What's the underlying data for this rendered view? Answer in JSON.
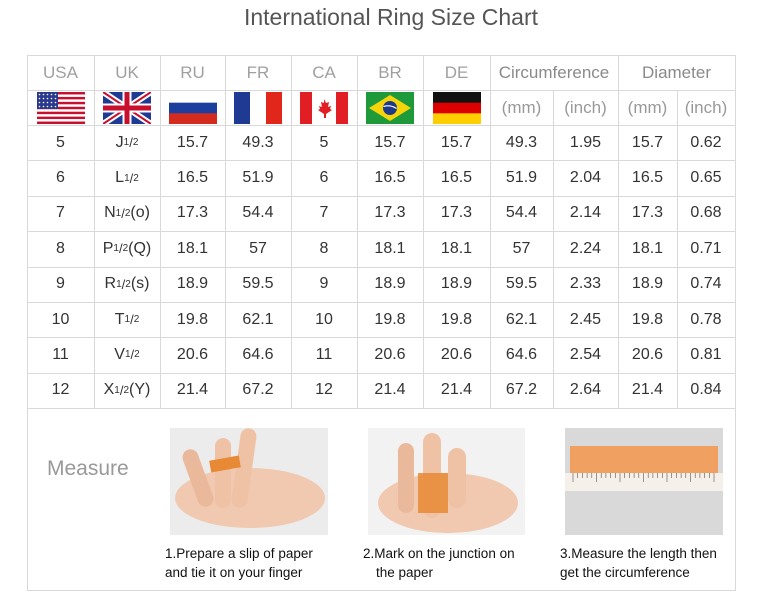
{
  "title": "International Ring Size Chart",
  "table": {
    "header": [
      "USA",
      "UK",
      "RU",
      "FR",
      "CA",
      "BR",
      "DE",
      "Circumference",
      "Diameter"
    ],
    "units": [
      "(mm)",
      "(inch)",
      "(mm)",
      "(inch)"
    ],
    "uk_fraction": {
      "numerator": "1",
      "separator": "/",
      "denominator": "2"
    },
    "rows": [
      [
        5,
        {
          "letter": "J"
        },
        15.7,
        49.3,
        5,
        15.7,
        15.7,
        49.3,
        1.95,
        15.7,
        0.62
      ],
      [
        6,
        {
          "letter": "L"
        },
        16.5,
        51.9,
        6,
        16.5,
        16.5,
        51.9,
        2.04,
        16.5,
        0.65
      ],
      [
        7,
        {
          "letter": "N",
          "suffix": "(o)"
        },
        17.3,
        54.4,
        7,
        17.3,
        17.3,
        54.4,
        2.14,
        17.3,
        0.68
      ],
      [
        8,
        {
          "letter": "P",
          "suffix": "(Q)"
        },
        18.1,
        57,
        8,
        18.1,
        18.1,
        57,
        2.24,
        18.1,
        0.71
      ],
      [
        9,
        {
          "letter": "R",
          "suffix": "(s)"
        },
        18.9,
        59.5,
        9,
        18.9,
        18.9,
        59.5,
        2.33,
        18.9,
        0.74
      ],
      [
        10,
        {
          "letter": "T"
        },
        19.8,
        62.1,
        10,
        19.8,
        19.8,
        62.1,
        2.45,
        19.8,
        0.78
      ],
      [
        11,
        {
          "letter": "V"
        },
        20.6,
        64.6,
        11,
        20.6,
        20.6,
        64.6,
        2.54,
        20.6,
        0.81
      ],
      [
        12,
        {
          "letter": "X",
          "suffix": "(Y)"
        },
        21.4,
        67.2,
        12,
        21.4,
        21.4,
        67.2,
        2.64,
        21.4,
        0.84
      ]
    ]
  },
  "measure": {
    "label": "Measure",
    "steps": [
      {
        "lines": [
          "1.Prepare a slip of paper",
          "and tie it on your finger"
        ]
      },
      {
        "lines": [
          "2.Mark on the junction on",
          "the paper"
        ]
      },
      {
        "lines": [
          "3.Measure the length then",
          "get the circumference"
        ]
      }
    ]
  }
}
